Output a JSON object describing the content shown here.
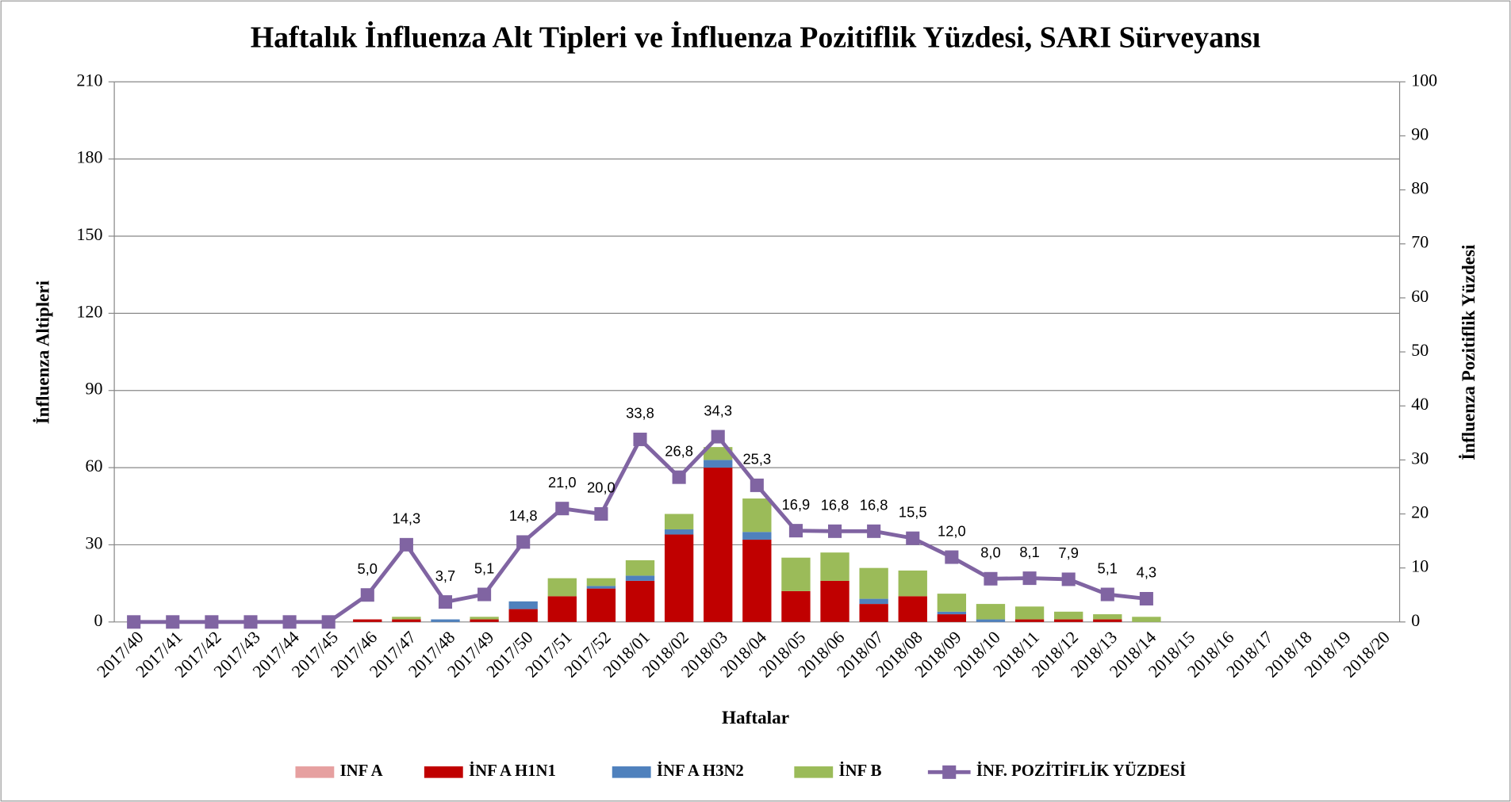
{
  "chart_data": {
    "type": "bar",
    "title": "Haftalık İnfluenza Alt Tipleri ve İnfluenza Pozitiflik Yüzdesi, SARI Sürveyansı",
    "x_label": "Haftalar",
    "y_label": "İnfluenza Altipleri",
    "y2_label": "İnfluenza Pozitiflik Yüzdesi",
    "categories": [
      "2017/40",
      "2017/41",
      "2017/42",
      "2017/43",
      "2017/44",
      "2017/45",
      "2017/46",
      "2017/47",
      "2017/48",
      "2017/49",
      "2017/50",
      "2017/51",
      "2017/52",
      "2018/01",
      "2018/02",
      "2018/03",
      "2018/04",
      "2018/05",
      "2018/06",
      "2018/07",
      "2018/08",
      "2018/09",
      "2018/10",
      "2018/11",
      "2018/12",
      "2018/13",
      "2018/14",
      "2018/15",
      "2018/16",
      "2018/17",
      "2018/18",
      "2018/19",
      "2018/20"
    ],
    "stacked": true,
    "series": [
      {
        "name": "INF A",
        "color": "#e6a0a0",
        "values": [
          0,
          0,
          0,
          0,
          0,
          0,
          0,
          0,
          0,
          0,
          0,
          0,
          0,
          0,
          0,
          0,
          0,
          0,
          0,
          0,
          0,
          0,
          0,
          0,
          0,
          0,
          0,
          0,
          0,
          0,
          0,
          0,
          0
        ]
      },
      {
        "name": "İNF A H1N1",
        "color": "#c00000",
        "values": [
          0,
          0,
          0,
          0,
          0,
          0,
          1,
          1,
          0,
          1,
          5,
          10,
          13,
          16,
          34,
          60,
          32,
          12,
          16,
          7,
          10,
          3,
          0,
          1,
          1,
          1,
          0,
          0,
          0,
          0,
          0,
          0,
          0
        ]
      },
      {
        "name": "İNF A H3N2",
        "color": "#4f81bd",
        "values": [
          0,
          0,
          0,
          0,
          0,
          0,
          0,
          0,
          1,
          0,
          3,
          0,
          1,
          2,
          2,
          3,
          3,
          0,
          0,
          2,
          0,
          1,
          1,
          0,
          0,
          0,
          0,
          0,
          0,
          0,
          0,
          0,
          0
        ]
      },
      {
        "name": "İNF B",
        "color": "#9bbb59",
        "values": [
          0,
          0,
          0,
          0,
          0,
          0,
          0,
          1,
          0,
          1,
          0,
          7,
          3,
          6,
          6,
          5,
          13,
          13,
          11,
          12,
          10,
          7,
          6,
          5,
          3,
          2,
          2,
          0,
          0,
          0,
          0,
          0,
          0
        ]
      },
      {
        "name": "İNF. POZİTİFLİK YÜZDESİ",
        "type": "line",
        "axis": "y2",
        "color": "#8064a2",
        "values": [
          0,
          0,
          0,
          0,
          0,
          0,
          5.0,
          14.3,
          3.7,
          5.1,
          14.8,
          21.0,
          20.0,
          33.8,
          26.8,
          34.3,
          25.3,
          16.9,
          16.8,
          16.8,
          15.5,
          12.0,
          8.0,
          8.1,
          7.9,
          5.1,
          4.3,
          null,
          null,
          null,
          null,
          null,
          null
        ],
        "value_labels": [
          null,
          null,
          null,
          null,
          null,
          null,
          "5,0",
          "14,3",
          "3,7",
          "5,1",
          "14,8",
          "21,0",
          "20,0",
          "33,8",
          "26,8",
          "34,3",
          "25,3",
          "16,9",
          "16,8",
          "16,8",
          "15,5",
          "12,0",
          "8,0",
          "8,1",
          "7,9",
          "5,1",
          "4,3",
          null,
          null,
          null,
          null,
          null,
          null
        ]
      }
    ],
    "ylim": [
      0,
      210
    ],
    "yticks": [
      0,
      30,
      60,
      90,
      120,
      150,
      180,
      210
    ],
    "y2lim": [
      0,
      100
    ],
    "y2ticks": [
      0,
      10,
      20,
      30,
      40,
      50,
      60,
      70,
      80,
      90,
      100
    ],
    "grid": true,
    "legend": "bottom"
  }
}
